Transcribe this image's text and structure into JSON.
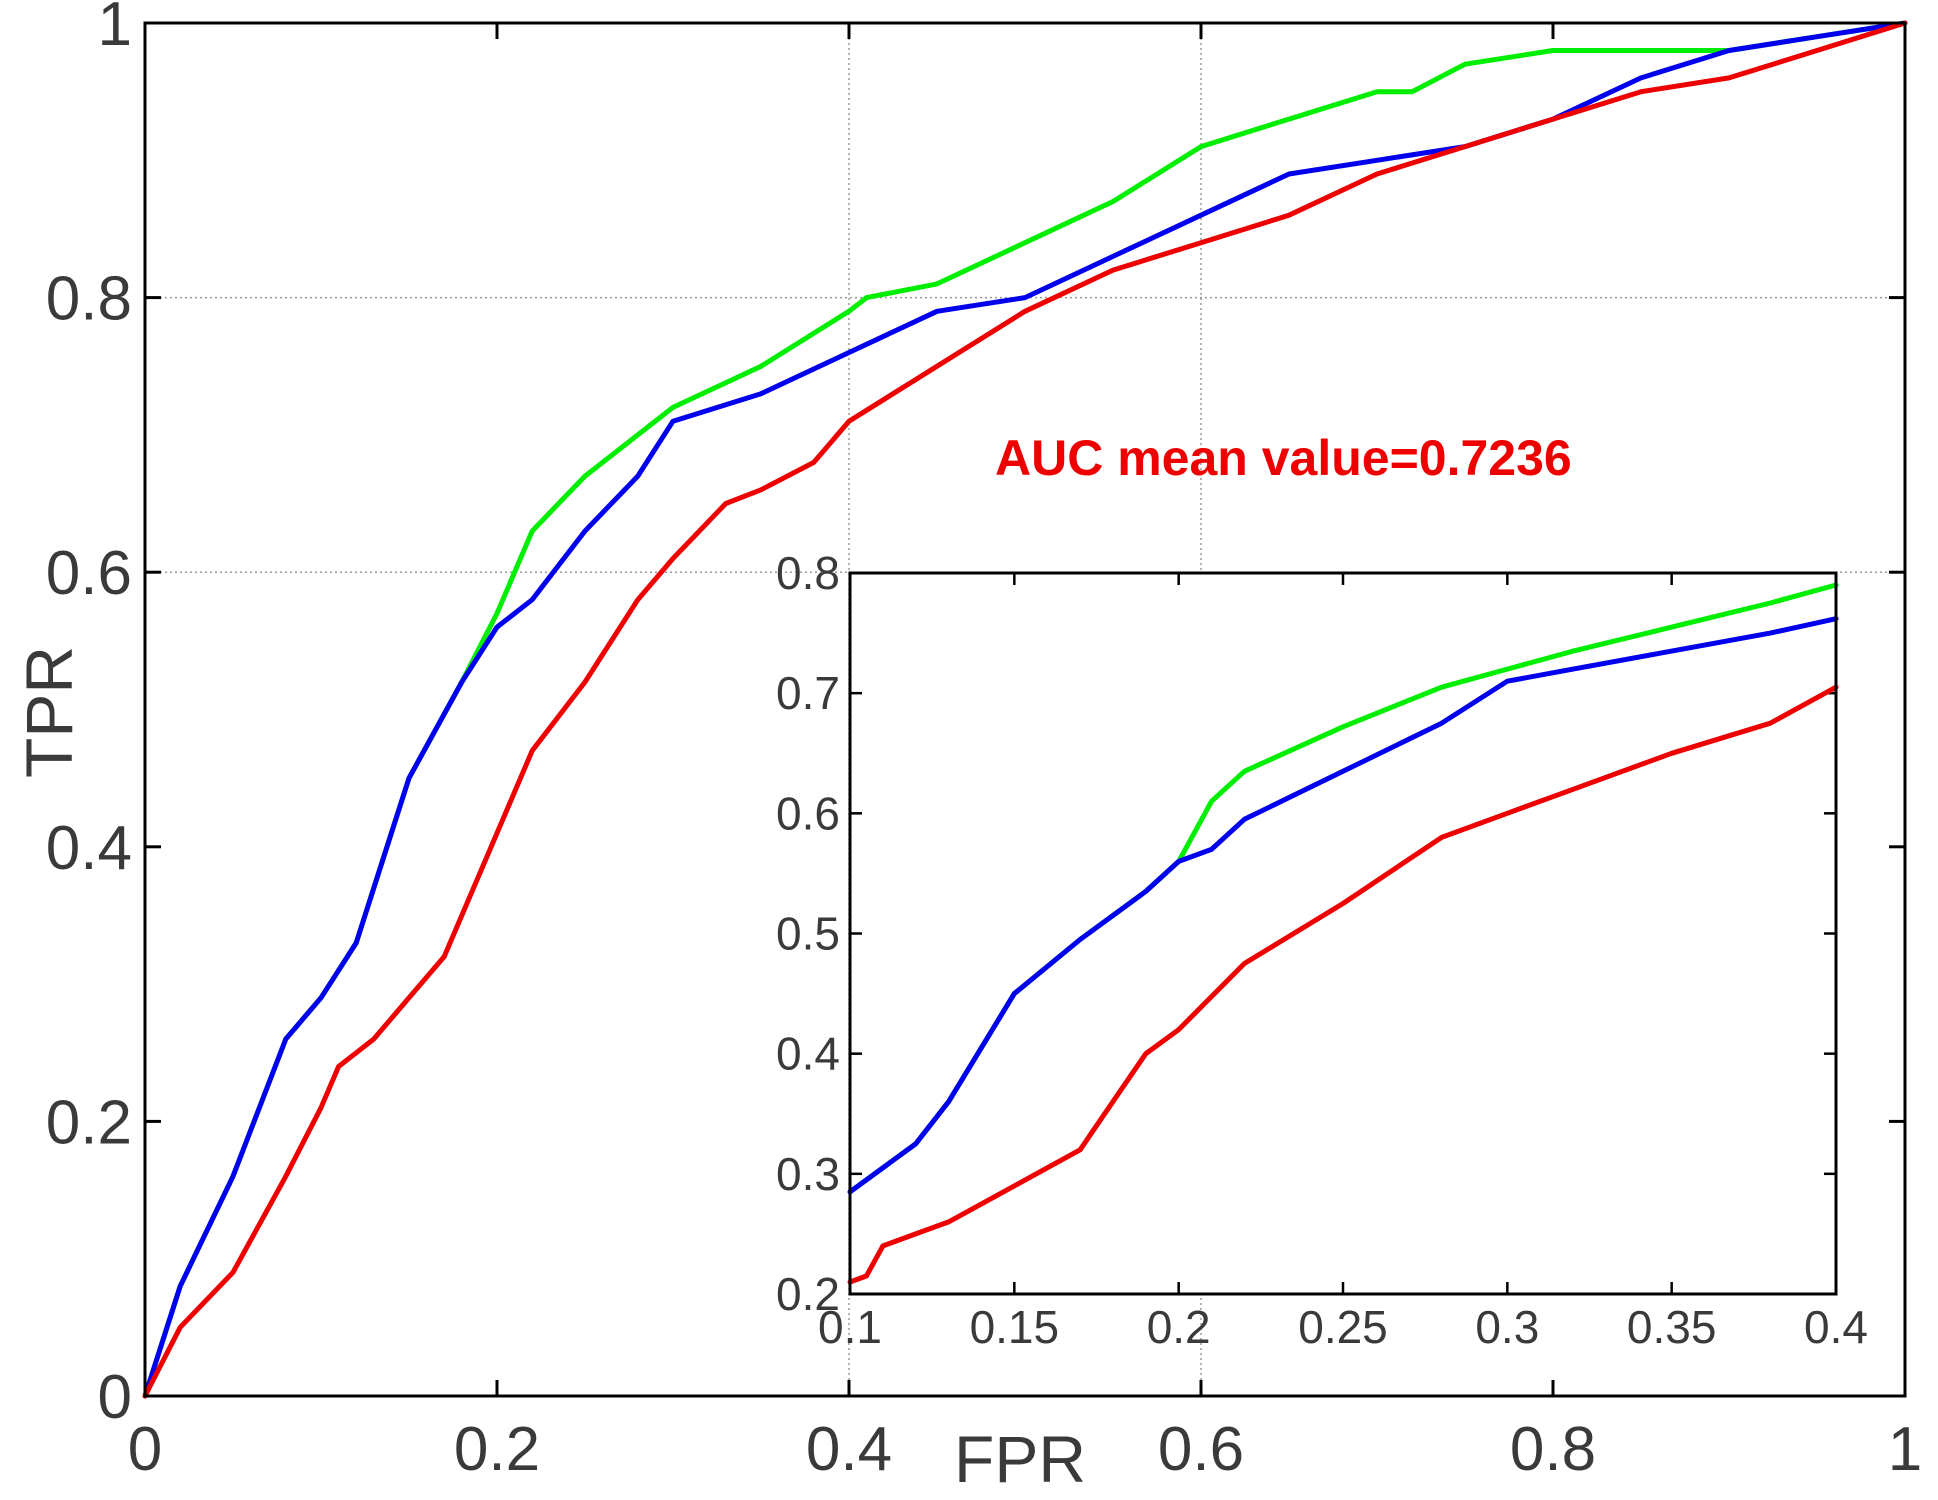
{
  "colors": {
    "green": "#00ee00",
    "blue": "#0000ee",
    "red": "#ee0000",
    "annotation": "#ee0000",
    "axis": "#000000",
    "grid": "#9a9a9a"
  },
  "chart_data": [
    {
      "id": "main",
      "type": "line",
      "title": "",
      "xlabel": "FPR",
      "ylabel": "TPR",
      "xlim": [
        0,
        1
      ],
      "ylim": [
        0,
        1
      ],
      "xticks": [
        0,
        0.2,
        0.4,
        0.6,
        0.8,
        1
      ],
      "xtick_labels": [
        "0",
        "0.2",
        "0.4",
        "0.6",
        "0.8",
        "1"
      ],
      "yticks": [
        0,
        0.2,
        0.4,
        0.6,
        0.8,
        1
      ],
      "ytick_labels": [
        "0",
        "0.2",
        "0.4",
        "0.6",
        "0.8",
        "1"
      ],
      "grid": "dotted lines at x=0.4, x=0.6, y=0.6, y=0.8",
      "annotation": "AUC mean value=0.7236",
      "series": [
        {
          "name": "green",
          "color": "#00ee00",
          "x": [
            0,
            0.02,
            0.05,
            0.08,
            0.1,
            0.12,
            0.15,
            0.18,
            0.2,
            0.21,
            0.22,
            0.25,
            0.28,
            0.3,
            0.35,
            0.4,
            0.41,
            0.45,
            0.5,
            0.55,
            0.6,
            0.65,
            0.7,
            0.72,
            0.75,
            0.8,
            0.85,
            0.9,
            0.95,
            1.0
          ],
          "y": [
            0,
            0.08,
            0.16,
            0.26,
            0.29,
            0.33,
            0.45,
            0.52,
            0.57,
            0.6,
            0.63,
            0.67,
            0.7,
            0.72,
            0.75,
            0.79,
            0.8,
            0.81,
            0.84,
            0.87,
            0.91,
            0.93,
            0.95,
            0.95,
            0.97,
            0.98,
            0.98,
            0.98,
            0.99,
            1.0
          ]
        },
        {
          "name": "blue",
          "color": "#0000ee",
          "x": [
            0,
            0.02,
            0.05,
            0.08,
            0.1,
            0.12,
            0.15,
            0.18,
            0.2,
            0.22,
            0.25,
            0.28,
            0.3,
            0.35,
            0.4,
            0.45,
            0.5,
            0.55,
            0.6,
            0.65,
            0.7,
            0.75,
            0.8,
            0.85,
            0.9,
            0.95,
            1.0
          ],
          "y": [
            0,
            0.08,
            0.16,
            0.26,
            0.29,
            0.33,
            0.45,
            0.52,
            0.56,
            0.58,
            0.63,
            0.67,
            0.71,
            0.73,
            0.76,
            0.79,
            0.8,
            0.83,
            0.86,
            0.89,
            0.9,
            0.91,
            0.93,
            0.96,
            0.98,
            0.99,
            1.0
          ]
        },
        {
          "name": "red",
          "color": "#ee0000",
          "x": [
            0,
            0.02,
            0.05,
            0.08,
            0.1,
            0.11,
            0.12,
            0.13,
            0.15,
            0.17,
            0.2,
            0.22,
            0.25,
            0.28,
            0.3,
            0.33,
            0.35,
            0.38,
            0.4,
            0.45,
            0.5,
            0.55,
            0.6,
            0.65,
            0.7,
            0.75,
            0.8,
            0.85,
            0.9,
            0.95,
            1.0
          ],
          "y": [
            0,
            0.05,
            0.09,
            0.16,
            0.21,
            0.24,
            0.25,
            0.26,
            0.29,
            0.32,
            0.41,
            0.47,
            0.52,
            0.58,
            0.61,
            0.65,
            0.66,
            0.68,
            0.71,
            0.75,
            0.79,
            0.82,
            0.84,
            0.86,
            0.89,
            0.91,
            0.93,
            0.95,
            0.96,
            0.98,
            1.0
          ]
        }
      ]
    },
    {
      "id": "inset",
      "type": "line",
      "title": "",
      "xlabel": "",
      "ylabel": "",
      "xlim": [
        0.1,
        0.4
      ],
      "ylim": [
        0.2,
        0.8
      ],
      "xticks": [
        0.1,
        0.15,
        0.2,
        0.25,
        0.3,
        0.35,
        0.4
      ],
      "xtick_labels": [
        "0.1",
        "0.15",
        "0.2",
        "0.25",
        "0.3",
        "0.35",
        "0.4"
      ],
      "yticks": [
        0.2,
        0.3,
        0.4,
        0.5,
        0.6,
        0.7,
        0.8
      ],
      "ytick_labels": [
        "0.2",
        "0.3",
        "0.4",
        "0.5",
        "0.6",
        "0.7",
        "0.8"
      ],
      "grid": "none",
      "series": [
        {
          "name": "green",
          "color": "#00ee00",
          "x": [
            0.1,
            0.11,
            0.12,
            0.13,
            0.15,
            0.17,
            0.19,
            0.2,
            0.205,
            0.21,
            0.22,
            0.25,
            0.28,
            0.3,
            0.32,
            0.35,
            0.38,
            0.4
          ],
          "y": [
            0.285,
            0.305,
            0.325,
            0.36,
            0.45,
            0.495,
            0.535,
            0.56,
            0.585,
            0.61,
            0.635,
            0.672,
            0.705,
            0.72,
            0.735,
            0.755,
            0.775,
            0.79
          ]
        },
        {
          "name": "blue",
          "color": "#0000ee",
          "x": [
            0.1,
            0.11,
            0.12,
            0.13,
            0.15,
            0.17,
            0.19,
            0.2,
            0.205,
            0.21,
            0.22,
            0.25,
            0.28,
            0.3,
            0.32,
            0.35,
            0.38,
            0.4
          ],
          "y": [
            0.285,
            0.305,
            0.325,
            0.36,
            0.45,
            0.495,
            0.535,
            0.56,
            0.565,
            0.57,
            0.595,
            0.635,
            0.675,
            0.71,
            0.72,
            0.735,
            0.75,
            0.762
          ]
        },
        {
          "name": "red",
          "color": "#ee0000",
          "x": [
            0.1,
            0.105,
            0.11,
            0.12,
            0.13,
            0.15,
            0.17,
            0.18,
            0.19,
            0.2,
            0.22,
            0.25,
            0.28,
            0.3,
            0.32,
            0.35,
            0.38,
            0.4
          ],
          "y": [
            0.21,
            0.215,
            0.24,
            0.25,
            0.26,
            0.29,
            0.32,
            0.36,
            0.4,
            0.42,
            0.475,
            0.525,
            0.58,
            0.6,
            0.62,
            0.65,
            0.675,
            0.705
          ]
        }
      ]
    }
  ]
}
